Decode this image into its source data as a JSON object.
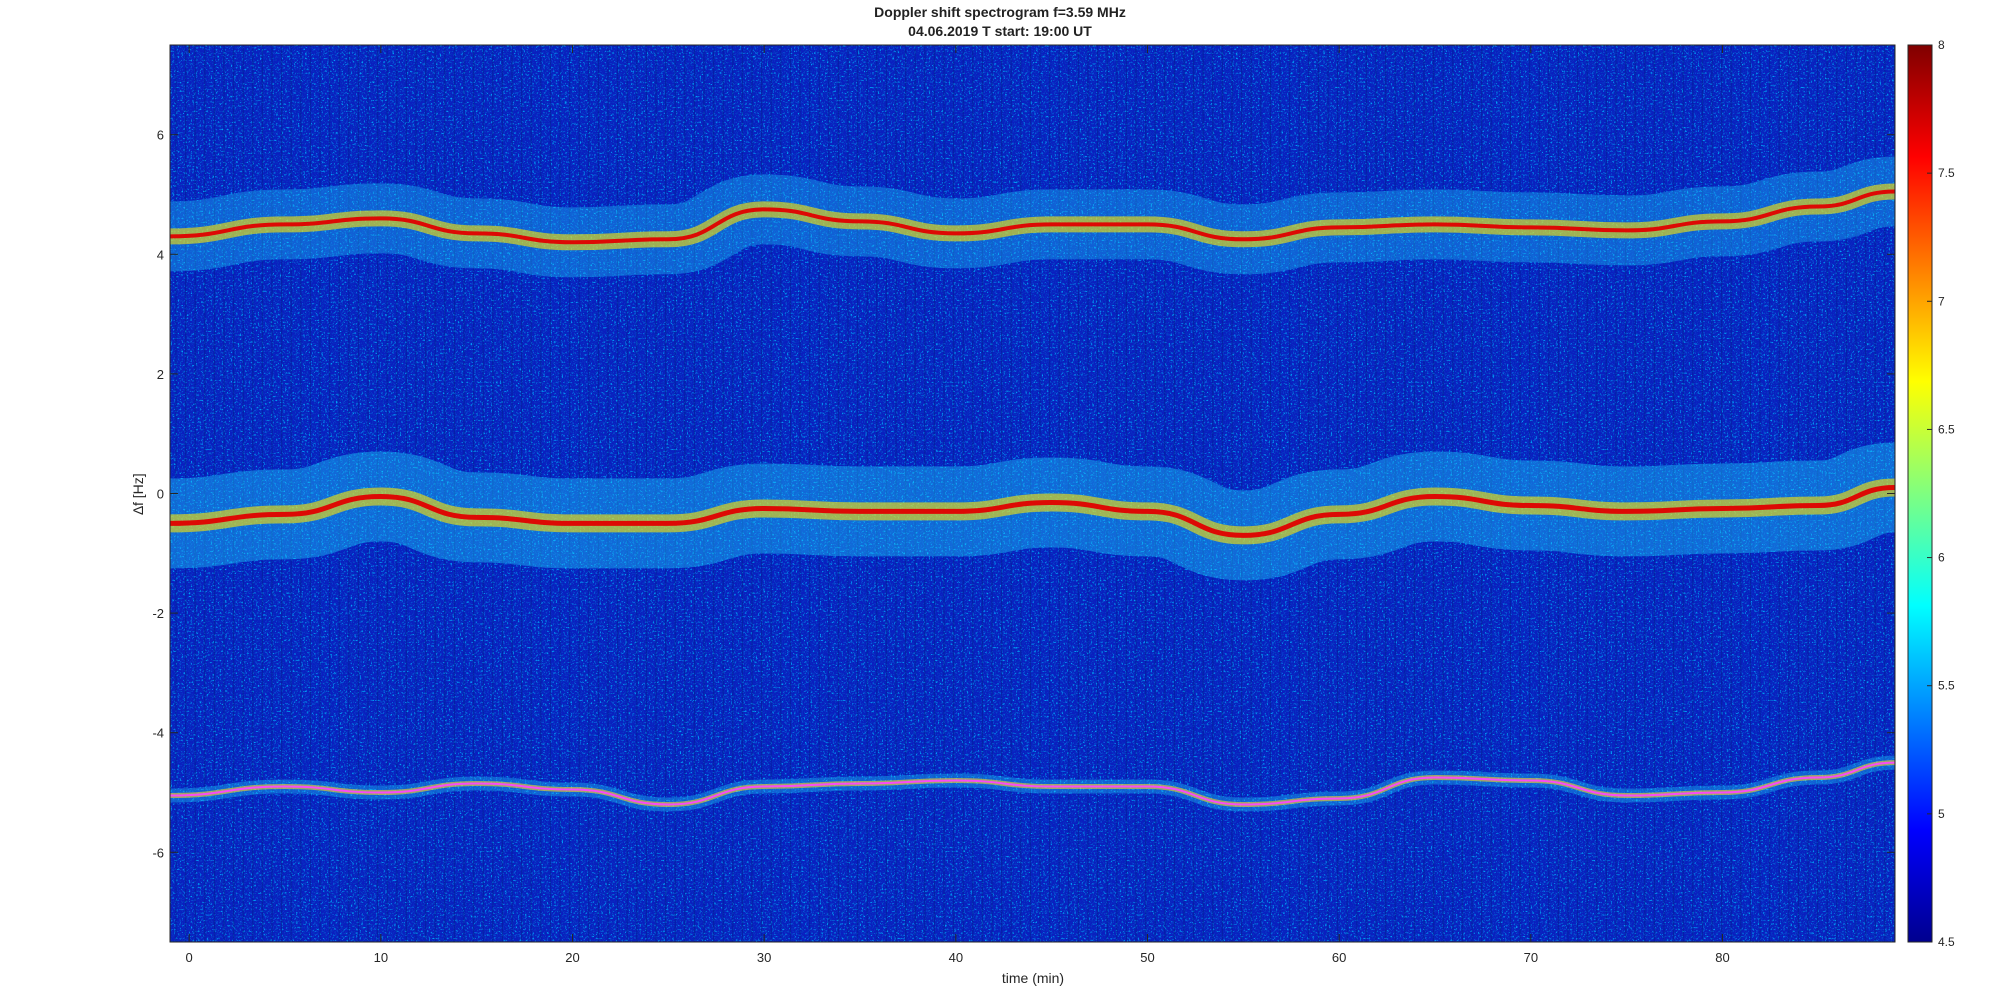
{
  "chart_data": {
    "type": "heatmap",
    "title": "Doppler shift spectrogram f=3.59 MHz",
    "subtitle": "04.06.2019    T start: 19:00 UT",
    "xlabel": "time (min)",
    "ylabel": "∆f [Hz]",
    "xlim": [
      -1,
      89
    ],
    "ylim": [
      -7.5,
      7.5
    ],
    "x_ticks": [
      0,
      10,
      20,
      30,
      40,
      50,
      60,
      70,
      80
    ],
    "y_ticks": [
      -6,
      -4,
      -2,
      0,
      2,
      4,
      6
    ],
    "colorbar": {
      "limits": [
        4.5,
        8
      ],
      "ticks": [
        4.5,
        5,
        5.5,
        6,
        6.5,
        7,
        7.5,
        8
      ],
      "colormap": "jet"
    },
    "background_level": 4.9,
    "traces": [
      {
        "x": [
          -1,
          5,
          10,
          15,
          20,
          25,
          30,
          35,
          40,
          45,
          50,
          55,
          60,
          65,
          70,
          75,
          80,
          85,
          89
        ],
        "y": [
          4.3,
          4.5,
          4.6,
          4.35,
          4.2,
          4.25,
          4.75,
          4.55,
          4.35,
          4.5,
          4.5,
          4.25,
          4.45,
          4.5,
          4.45,
          4.4,
          4.55,
          4.8,
          5.05
        ]
      },
      {
        "x": [
          -1,
          5,
          10,
          15,
          20,
          25,
          30,
          35,
          40,
          45,
          50,
          55,
          60,
          65,
          70,
          75,
          80,
          85,
          89
        ],
        "y": [
          -0.5,
          -0.35,
          -0.05,
          -0.4,
          -0.5,
          -0.5,
          -0.25,
          -0.3,
          -0.3,
          -0.15,
          -0.3,
          -0.7,
          -0.35,
          -0.05,
          -0.2,
          -0.3,
          -0.25,
          -0.2,
          0.1
        ]
      },
      {
        "x": [
          -1,
          5,
          10,
          15,
          20,
          25,
          30,
          35,
          40,
          45,
          50,
          55,
          60,
          65,
          70,
          75,
          80,
          85,
          89
        ],
        "y": [
          -5.05,
          -4.9,
          -5.0,
          -4.85,
          -4.95,
          -5.2,
          -4.9,
          -4.85,
          -4.8,
          -4.9,
          -4.9,
          -5.2,
          -5.1,
          -4.75,
          -4.8,
          -5.05,
          -5.0,
          -4.75,
          -4.5
        ]
      }
    ]
  }
}
